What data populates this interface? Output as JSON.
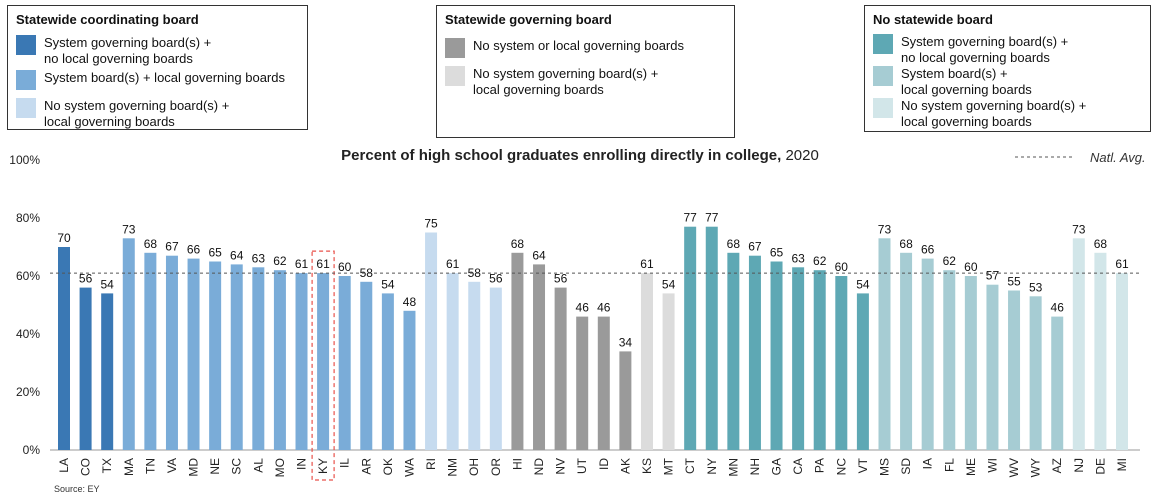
{
  "legend_groups": [
    {
      "title": "Statewide coordinating board",
      "items": [
        {
          "label": "System governing board(s) +\nno local governing boards",
          "color": "#3a78b4"
        },
        {
          "label": "System board(s) + local governing boards",
          "color": "#7aacd8"
        },
        {
          "label": "No system governing board(s) +\nlocal governing boards",
          "color": "#c6dbef"
        }
      ]
    },
    {
      "title": "Statewide governing board",
      "items": [
        {
          "label": "No system or local governing boards",
          "color": "#9a9a9a"
        },
        {
          "label": "No system governing board(s) +\nlocal governing boards",
          "color": "#dcdcdc"
        }
      ]
    },
    {
      "title": "No statewide board",
      "items": [
        {
          "label": "System governing board(s) +\nno local governing boards",
          "color": "#5ea8b4"
        },
        {
          "label": "System board(s) +\nlocal governing boards",
          "color": "#a6ccd3"
        },
        {
          "label": "No system governing board(s) +\nlocal governing boards",
          "color": "#d2e6e9"
        }
      ]
    }
  ],
  "source": "Source: EY",
  "chart_data": {
    "type": "bar",
    "title": "Percent of high school graduates enrolling directly in college,",
    "title_year": "2020",
    "reference_line": {
      "label": "Natl. Avg.",
      "value": 61
    },
    "ylim": [
      0,
      100
    ],
    "yticks": [
      0,
      20,
      40,
      60,
      80,
      100
    ],
    "ytick_labels": [
      "0%",
      "20%",
      "40%",
      "60%",
      "80%",
      "100%"
    ],
    "highlight": "KY",
    "categories": [
      "LA",
      "CO",
      "TX",
      "MA",
      "TN",
      "VA",
      "MD",
      "NE",
      "SC",
      "AL",
      "MO",
      "IN",
      "KY",
      "IL",
      "AR",
      "OK",
      "WA",
      "RI",
      "NM",
      "OH",
      "OR",
      "HI",
      "ND",
      "NV",
      "UT",
      "ID",
      "AK",
      "KS",
      "MT",
      "CT",
      "NY",
      "MN",
      "NH",
      "GA",
      "CA",
      "PA",
      "NC",
      "VT",
      "MS",
      "SD",
      "IA",
      "FL",
      "ME",
      "WI",
      "WV",
      "WY",
      "AZ",
      "NJ",
      "DE",
      "MI"
    ],
    "values": [
      70,
      56,
      54,
      73,
      68,
      67,
      66,
      65,
      64,
      63,
      62,
      61,
      61,
      60,
      58,
      54,
      48,
      75,
      61,
      58,
      56,
      68,
      64,
      56,
      46,
      46,
      34,
      61,
      54,
      77,
      77,
      68,
      67,
      65,
      63,
      62,
      60,
      54,
      73,
      68,
      66,
      62,
      60,
      57,
      55,
      53,
      46,
      73,
      68,
      61
    ],
    "group_index": [
      0,
      0,
      0,
      1,
      1,
      1,
      1,
      1,
      1,
      1,
      1,
      1,
      1,
      1,
      1,
      1,
      1,
      2,
      2,
      2,
      2,
      3,
      3,
      3,
      3,
      3,
      3,
      4,
      4,
      5,
      5,
      5,
      5,
      5,
      5,
      5,
      5,
      5,
      6,
      6,
      6,
      6,
      6,
      6,
      6,
      6,
      6,
      7,
      7,
      7
    ]
  }
}
